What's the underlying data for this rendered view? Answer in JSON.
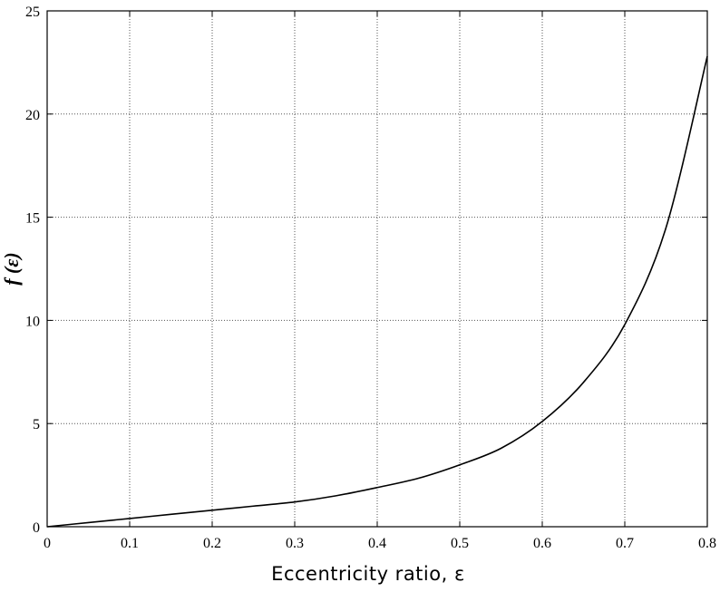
{
  "chart_data": {
    "type": "line",
    "title": "",
    "xlabel": "Eccentricity  ratio,  ε",
    "ylabel": "f (ε)",
    "xlim": [
      0,
      0.8
    ],
    "ylim": [
      0,
      25
    ],
    "x_ticks": [
      0,
      0.1,
      0.2,
      0.3,
      0.4,
      0.5,
      0.6,
      0.7,
      0.8
    ],
    "x_tick_labels": [
      "0",
      "0.1",
      "0.2",
      "0.3",
      "0.4",
      "0.5",
      "0.6",
      "0.7",
      "0.8"
    ],
    "y_ticks": [
      0,
      5,
      10,
      15,
      20,
      25
    ],
    "y_tick_labels": [
      "0",
      "5",
      "10",
      "15",
      "20",
      "25"
    ],
    "grid": true,
    "legend": "none",
    "series": [
      {
        "x": [
          0,
          0.05,
          0.1,
          0.15,
          0.2,
          0.25,
          0.3,
          0.35,
          0.4,
          0.45,
          0.5,
          0.55,
          0.6,
          0.65,
          0.7,
          0.75,
          0.8
        ],
        "y": [
          0,
          0.2,
          0.4,
          0.6,
          0.8,
          1.0,
          1.2,
          1.5,
          1.9,
          2.35,
          3.0,
          3.8,
          5.1,
          7.0,
          9.8,
          14.5,
          22.8
        ],
        "color": "#000000"
      }
    ]
  }
}
